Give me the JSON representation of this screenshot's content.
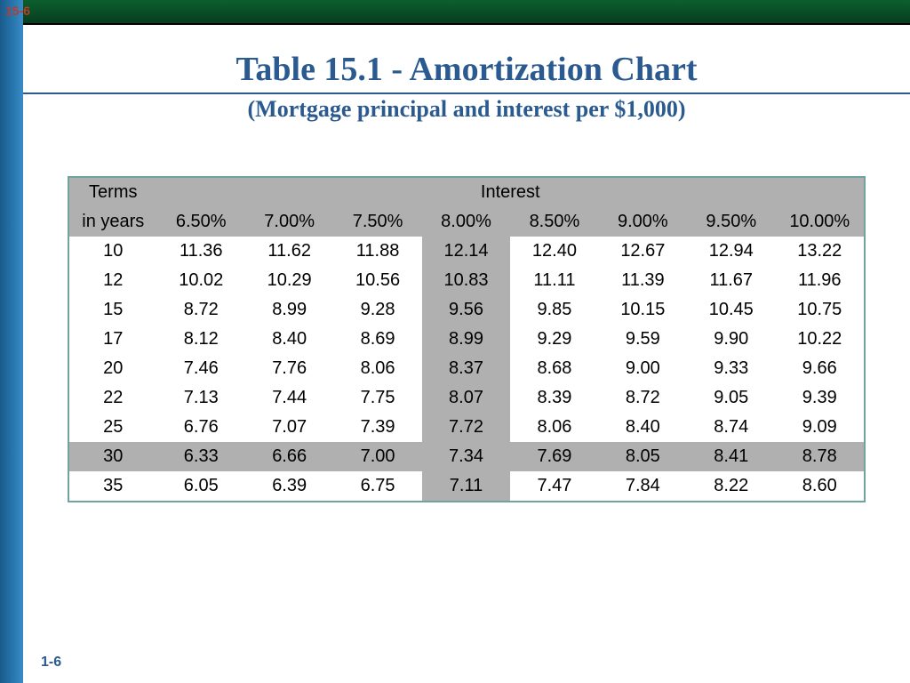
{
  "topLeft": "15-6",
  "title": "Table 15.1 - Amortization Chart",
  "subtitle": "(Mortgage principal and interest per $1,000)",
  "pageNum": "1-6",
  "table": {
    "header": {
      "termsLabel1": "Terms",
      "termsLabel2": "in years",
      "interestLabel": "Interest",
      "rates": [
        "6.50%",
        "7.00%",
        "7.50%",
        "8.00%",
        "8.50%",
        "9.00%",
        "9.50%",
        "10.00%"
      ]
    },
    "highlightColIndex": 3,
    "highlightRowIndex": 7,
    "rows": [
      {
        "term": "10",
        "vals": [
          "11.36",
          "11.62",
          "11.88",
          "12.14",
          "12.40",
          "12.67",
          "12.94",
          "13.22"
        ]
      },
      {
        "term": "12",
        "vals": [
          "10.02",
          "10.29",
          "10.56",
          "10.83",
          "11.11",
          "11.39",
          "11.67",
          "11.96"
        ]
      },
      {
        "term": "15",
        "vals": [
          "8.72",
          "8.99",
          "9.28",
          "9.56",
          "9.85",
          "10.15",
          "10.45",
          "10.75"
        ]
      },
      {
        "term": "17",
        "vals": [
          "8.12",
          "8.40",
          "8.69",
          "8.99",
          "9.29",
          "9.59",
          "9.90",
          "10.22"
        ]
      },
      {
        "term": "20",
        "vals": [
          "7.46",
          "7.76",
          "8.06",
          "8.37",
          "8.68",
          "9.00",
          "9.33",
          "9.66"
        ]
      },
      {
        "term": "22",
        "vals": [
          "7.13",
          "7.44",
          "7.75",
          "8.07",
          "8.39",
          "8.72",
          "9.05",
          "9.39"
        ]
      },
      {
        "term": "25",
        "vals": [
          "6.76",
          "7.07",
          "7.39",
          "7.72",
          "8.06",
          "8.40",
          "8.74",
          "9.09"
        ]
      },
      {
        "term": "30",
        "vals": [
          "6.33",
          "6.66",
          "7.00",
          "7.34",
          "7.69",
          "8.05",
          "8.41",
          "8.78"
        ]
      },
      {
        "term": "35",
        "vals": [
          "6.05",
          "6.39",
          "6.75",
          "7.11",
          "7.47",
          "7.84",
          "8.22",
          "8.60"
        ]
      }
    ]
  },
  "style": {
    "titleColor": "#2a5a8f",
    "headerBg": "#b0b0b0",
    "highlightBg": "#b0b0b0",
    "tableBorder": "#6fa3a0",
    "bodyFontSize": 20,
    "titleFontSize": 38,
    "subtitleFontSize": 26
  }
}
